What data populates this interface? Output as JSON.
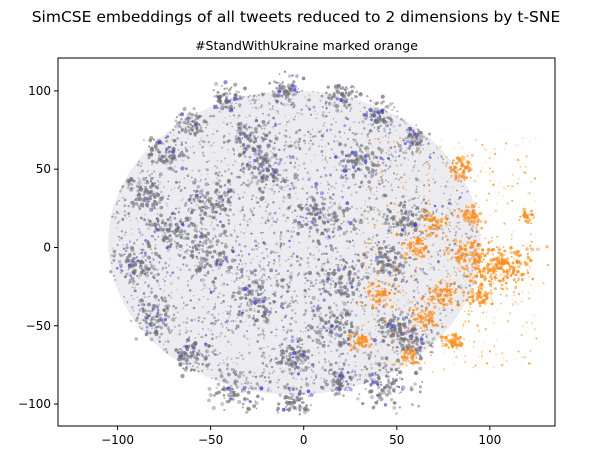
{
  "chart_data": {
    "type": "scatter",
    "title": "SimCSE embeddings of all tweets reduced to 2 dimensions by t-SNE",
    "subtitle": "#StandWithUkraine marked orange",
    "xlabel": "",
    "ylabel": "",
    "xlim": [
      -132,
      135
    ],
    "ylim": [
      -114,
      121
    ],
    "x_ticks": [
      -100,
      -50,
      0,
      50,
      100
    ],
    "y_ticks": [
      100,
      50,
      0,
      -50,
      -100
    ],
    "grid": false,
    "legend": "none",
    "colors": {
      "base": "#6e6e78",
      "accent_blue": "#3a3ae0",
      "highlight": "#ff8c1a",
      "axes": "#000000"
    },
    "series": [
      {
        "color": "#6e6e78",
        "cloud": {
          "center": [
            -5,
            3
          ],
          "radius_x": 100,
          "radius_y": 97
        },
        "clusters": [
          {
            "x": -85,
            "y": 35,
            "size": 6
          },
          {
            "x": -75,
            "y": 60,
            "size": 6
          },
          {
            "x": -60,
            "y": 80,
            "size": 5
          },
          {
            "x": -40,
            "y": 95,
            "size": 5
          },
          {
            "x": -10,
            "y": 100,
            "size": 5
          },
          {
            "x": 20,
            "y": 98,
            "size": 5
          },
          {
            "x": 40,
            "y": 85,
            "size": 5
          },
          {
            "x": 60,
            "y": 70,
            "size": 4
          },
          {
            "x": -90,
            "y": -10,
            "size": 6
          },
          {
            "x": -80,
            "y": -45,
            "size": 6
          },
          {
            "x": -60,
            "y": -70,
            "size": 6
          },
          {
            "x": -35,
            "y": -90,
            "size": 7
          },
          {
            "x": -5,
            "y": -98,
            "size": 5
          },
          {
            "x": 20,
            "y": -85,
            "size": 5
          },
          {
            "x": -20,
            "y": 50,
            "size": 9
          },
          {
            "x": -50,
            "y": 30,
            "size": 8
          },
          {
            "x": -50,
            "y": -5,
            "size": 9
          },
          {
            "x": -25,
            "y": -30,
            "size": 9
          },
          {
            "x": 10,
            "y": 20,
            "size": 9
          },
          {
            "x": 20,
            "y": -20,
            "size": 8
          },
          {
            "x": 15,
            "y": -50,
            "size": 7
          },
          {
            "x": -5,
            "y": -70,
            "size": 6
          },
          {
            "x": 30,
            "y": 55,
            "size": 7
          },
          {
            "x": 55,
            "y": 20,
            "size": 6
          },
          {
            "x": 45,
            "y": -10,
            "size": 6
          },
          {
            "x": 50,
            "y": -50,
            "size": 6
          },
          {
            "x": 60,
            "y": -60,
            "size": 5
          },
          {
            "x": 45,
            "y": -88,
            "size": 8
          },
          {
            "x": -70,
            "y": 10,
            "size": 7
          },
          {
            "x": -30,
            "y": 70,
            "size": 6
          }
        ]
      },
      {
        "name": "#StandWithUkraine",
        "color": "#ff8c1a",
        "clusters": [
          {
            "x": 110,
            "y": -13,
            "size": 9
          },
          {
            "x": 100,
            "y": -12,
            "size": 6
          },
          {
            "x": 88,
            "y": -5,
            "size": 5
          },
          {
            "x": 85,
            "y": 50,
            "size": 4
          },
          {
            "x": 90,
            "y": 20,
            "size": 4
          },
          {
            "x": 75,
            "y": -30,
            "size": 5
          },
          {
            "x": 95,
            "y": -30,
            "size": 4
          },
          {
            "x": 70,
            "y": 15,
            "size": 4
          },
          {
            "x": 65,
            "y": -45,
            "size": 4
          },
          {
            "x": 55,
            "y": -70,
            "size": 3
          },
          {
            "x": 80,
            "y": -60,
            "size": 3
          },
          {
            "x": 120,
            "y": 20,
            "size": 2
          },
          {
            "x": 40,
            "y": -30,
            "size": 4
          },
          {
            "x": 30,
            "y": -60,
            "size": 3
          },
          {
            "x": 60,
            "y": 0,
            "size": 4
          }
        ]
      }
    ]
  }
}
